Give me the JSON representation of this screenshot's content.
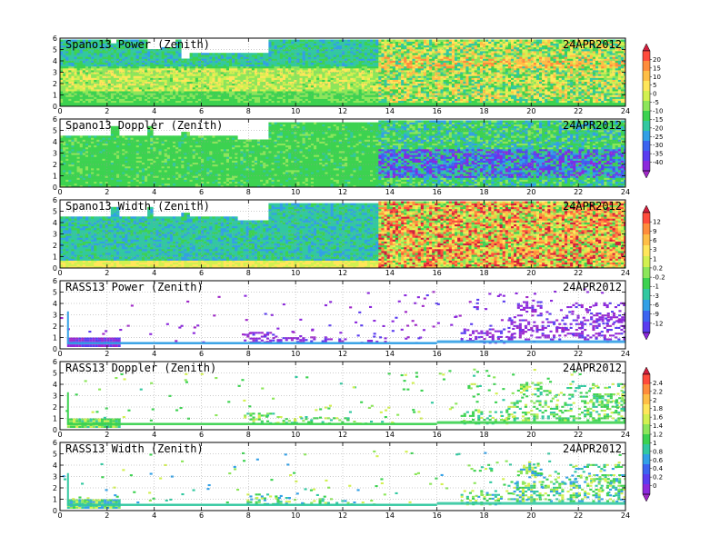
{
  "chart_data": [
    {
      "type": "heatmap",
      "title": "Spano13 Power (Zenith)",
      "date": "24APR2012",
      "xlim": [
        0,
        24
      ],
      "ylim": [
        0,
        6
      ],
      "x_ticks": [
        "0",
        "2",
        "4",
        "6",
        "8",
        "10",
        "12",
        "14",
        "16",
        "18",
        "20",
        "22",
        "24"
      ],
      "y_ticks": [
        "0",
        "1",
        "2",
        "3",
        "4",
        "5",
        "6"
      ],
      "top_km": [
        [
          0,
          5.9
        ],
        [
          1.9,
          5.9
        ],
        [
          2.1,
          5.6
        ],
        [
          2.3,
          5.9
        ],
        [
          3.6,
          5.9
        ],
        [
          3.7,
          5.1
        ],
        [
          4.2,
          5.2
        ],
        [
          4.8,
          5.9
        ],
        [
          5.1,
          4.2
        ],
        [
          5.5,
          4.8
        ],
        [
          6.1,
          4.8
        ],
        [
          6.5,
          4.8
        ],
        [
          8.8,
          5.9
        ],
        [
          13.5,
          5.9
        ],
        [
          24,
          5.9
        ]
      ],
      "grid": true
    },
    {
      "type": "heatmap",
      "title": "Spano13 Doppler (Zenith)",
      "date": "24APR2012",
      "xlim": [
        0,
        24
      ],
      "ylim": [
        0,
        6
      ],
      "x_ticks": [
        "0",
        "2",
        "4",
        "6",
        "8",
        "10",
        "12",
        "14",
        "16",
        "18",
        "20",
        "22",
        "24"
      ],
      "y_ticks": [
        "0",
        "1",
        "2",
        "3",
        "4",
        "5",
        "6"
      ],
      "top_km": [
        [
          0,
          4.5
        ],
        [
          1.9,
          4.5
        ],
        [
          2.1,
          5.4
        ],
        [
          2.4,
          4.5
        ],
        [
          3.4,
          4.5
        ],
        [
          3.6,
          5.4
        ],
        [
          3.9,
          4.5
        ],
        [
          5.1,
          4.9
        ],
        [
          5.4,
          4.5
        ],
        [
          6.0,
          4.6
        ],
        [
          7.5,
          4.3
        ],
        [
          8.8,
          5.8
        ],
        [
          13.5,
          5.9
        ],
        [
          24,
          5.9
        ]
      ],
      "grid": true
    },
    {
      "type": "heatmap",
      "title": "Spano13 Width (Zenith)",
      "date": "24APR2012",
      "xlim": [
        0,
        24
      ],
      "ylim": [
        0,
        6
      ],
      "x_ticks": [
        "0",
        "2",
        "4",
        "6",
        "8",
        "10",
        "12",
        "14",
        "16",
        "18",
        "20",
        "22",
        "24"
      ],
      "y_ticks": [
        "0",
        "1",
        "2",
        "3",
        "4",
        "5",
        "6"
      ],
      "top_km": [
        [
          0,
          4.5
        ],
        [
          1.9,
          4.5
        ],
        [
          2.1,
          5.4
        ],
        [
          2.4,
          4.5
        ],
        [
          3.4,
          4.5
        ],
        [
          3.6,
          5.4
        ],
        [
          3.9,
          4.5
        ],
        [
          5.1,
          4.9
        ],
        [
          5.4,
          4.5
        ],
        [
          6.0,
          4.6
        ],
        [
          7.5,
          4.3
        ],
        [
          8.8,
          5.8
        ],
        [
          13.5,
          5.9
        ],
        [
          24,
          5.9
        ]
      ],
      "grid": true
    },
    {
      "type": "heatmap",
      "title": "RASS13 Power (Zenith)",
      "date": "24APR2012",
      "xlim": [
        0,
        24
      ],
      "ylim": [
        0,
        6
      ],
      "x_ticks": [
        "0",
        "2",
        "4",
        "6",
        "8",
        "10",
        "12",
        "14",
        "16",
        "18",
        "20",
        "22",
        "24"
      ],
      "y_ticks": [
        "0",
        "1",
        "2",
        "3",
        "4",
        "5",
        "6"
      ],
      "grid": true
    },
    {
      "type": "heatmap",
      "title": "RASS13 Doppler (Zenith)",
      "date": "24APR2012",
      "xlim": [
        0,
        24
      ],
      "ylim": [
        0,
        6
      ],
      "x_ticks": [
        "0",
        "2",
        "4",
        "6",
        "8",
        "10",
        "12",
        "14",
        "16",
        "18",
        "20",
        "22",
        "24"
      ],
      "y_ticks": [
        "0",
        "1",
        "2",
        "3",
        "4",
        "5",
        "6"
      ],
      "grid": true
    },
    {
      "type": "heatmap",
      "title": "RASS13 Width (Zenith)",
      "date": "24APR2012",
      "xlim": [
        0,
        24
      ],
      "ylim": [
        0,
        6
      ],
      "x_ticks": [
        "0",
        "2",
        "4",
        "6",
        "8",
        "10",
        "12",
        "14",
        "16",
        "18",
        "20",
        "22",
        "24"
      ],
      "y_ticks": [
        "0",
        "1",
        "2",
        "3",
        "4",
        "5",
        "6"
      ],
      "grid": true
    }
  ],
  "colorbars": [
    {
      "labels": [
        "20",
        "15",
        "10",
        "5",
        "0",
        "-5",
        "-10",
        "-15",
        "-20",
        "-25",
        "-30",
        "-35",
        "-40"
      ],
      "colors": [
        "#d21e3c",
        "#ff4b3c",
        "#ff8c3c",
        "#ffbe46",
        "#ffe65a",
        "#d2f050",
        "#8ce65a",
        "#3cd250",
        "#32c8a0",
        "#32a0e6",
        "#3c64f0",
        "#5a3cf0",
        "#8c28dc",
        "#a028c8"
      ]
    },
    {
      "labels": [
        "12",
        "9",
        "6",
        "3",
        "1",
        "0.2",
        "-0.2",
        "-1",
        "-3",
        "-6",
        "-9",
        "-12"
      ],
      "colors": [
        "#d21e3c",
        "#ff4b3c",
        "#ff8c3c",
        "#ffbe46",
        "#ffe65a",
        "#d2f050",
        "#8ce65a",
        "#3cd250",
        "#32c8a0",
        "#32a0e6",
        "#3c64f0",
        "#5a3cf0",
        "#8c28dc"
      ]
    },
    {
      "labels": [
        "2.4",
        "2.2",
        "2",
        "1.8",
        "1.6",
        "1.4",
        "1.2",
        "1",
        "0.8",
        "0.6",
        "0.4",
        "0.2",
        "0"
      ],
      "colors": [
        "#d21e3c",
        "#ff4b3c",
        "#ff8c3c",
        "#ffbe46",
        "#ffe65a",
        "#d2f050",
        "#8ce65a",
        "#3cd250",
        "#32c8a0",
        "#32a0e6",
        "#3c64f0",
        "#5a3cf0",
        "#8c28dc",
        "#a028c8"
      ]
    }
  ]
}
